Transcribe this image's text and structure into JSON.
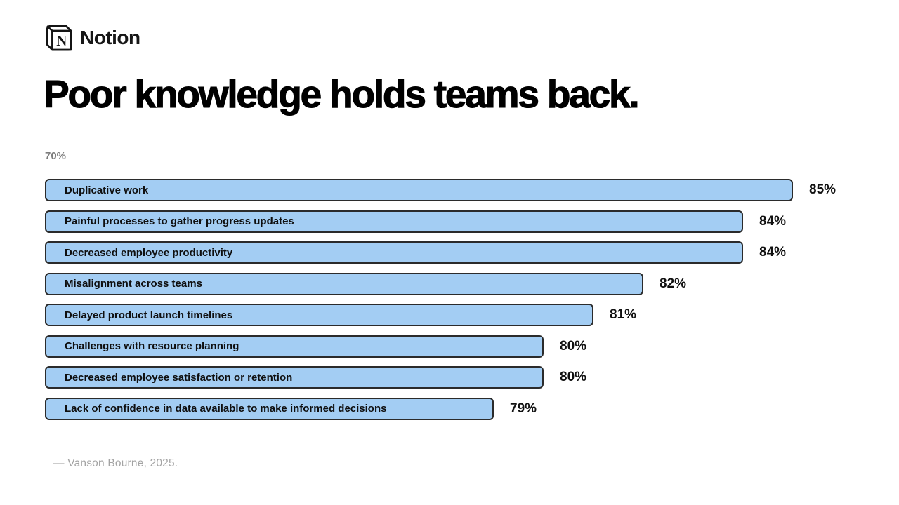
{
  "brand": {
    "name": "Notion"
  },
  "title": "Poor knowledge holds teams back.",
  "source": "— Vanson Bourne, 2025.",
  "chart_data": {
    "type": "bar",
    "orientation": "horizontal",
    "title": "Poor knowledge holds teams back.",
    "axis_label": "70%",
    "axis_min": 70,
    "grid": "single top baseline at 70%",
    "value_suffix": "%",
    "bar_fill_color": "#a3cdf3",
    "bar_border_color": "#2b2b2b",
    "categories": [
      "Duplicative work",
      "Painful processes to gather progress updates",
      "Decreased employee productivity",
      "Misalignment across teams",
      "Delayed product launch timelines",
      "Challenges with resource planning",
      "Decreased employee satisfaction or retention",
      "Lack of confidence in data available to make informed decisions"
    ],
    "values": [
      85,
      84,
      84,
      82,
      81,
      80,
      80,
      79
    ]
  }
}
